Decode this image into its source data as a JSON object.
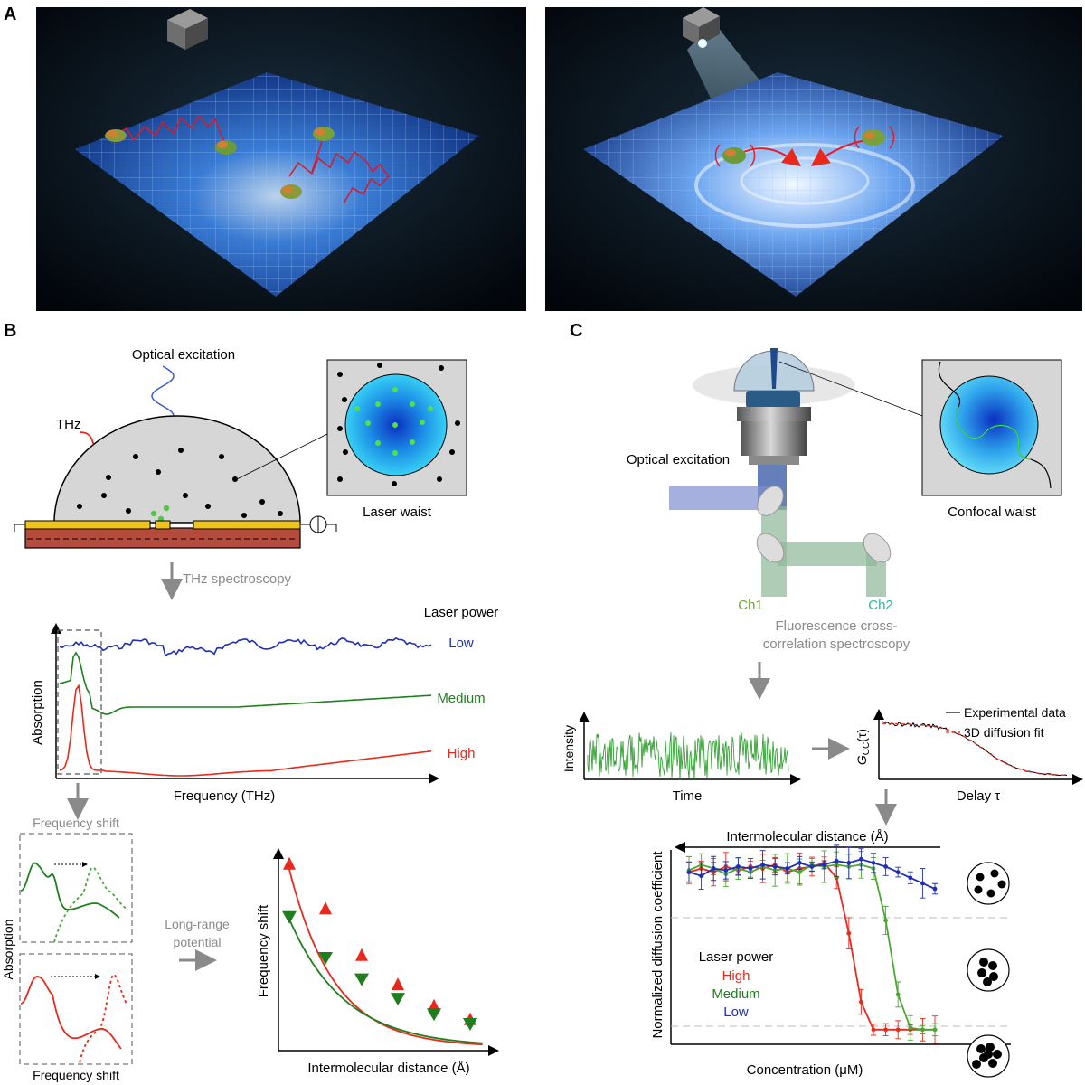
{
  "panels": {
    "a": "A",
    "b": "B",
    "c": "C"
  },
  "panel_b": {
    "optical_excitation": "Optical excitation",
    "thz": "THz",
    "laser_waist": "Laser waist",
    "thz_spectroscopy": "THz spectroscopy",
    "laser_power": "Laser power",
    "absorption": "Absorption",
    "frequency_thz": "Frequency (THz)",
    "low": "Low",
    "medium": "Medium",
    "high": "High",
    "frequency_shift_top": "Frequency shift",
    "frequency_shift_bottom": "Frequency shift",
    "absorption_small": "Absorption",
    "long_range_1": "Long-range",
    "long_range_2": "potential",
    "freq_shift_axis": "Frequency shift",
    "intermol_axis": "Intermolecular distance (Å)"
  },
  "panel_c": {
    "optical_excitation": "Optical excitation",
    "confocal_waist": "Confocal waist",
    "ch1": "Ch1",
    "ch2": "Ch2",
    "fccs_1": "Fluorescence cross-",
    "fccs_2": "correlation spectroscopy",
    "intensity": "Intensity",
    "time": "Time",
    "gcc_main": "G",
    "gcc_sub": "CC",
    "gcc_tail": "(τ)",
    "delay": "Delay τ",
    "legend_exp": "Experimental data",
    "legend_fit": "3D diffusion fit",
    "intermol_axis": "Intermolecular distance (Å)",
    "norm_diff": "Normalized diffusion coefficient",
    "concentration": "Concentration (μM)",
    "laser_power": "Laser power",
    "high": "High",
    "medium": "Medium",
    "low": "Low"
  },
  "colors": {
    "low": "#1f2fb8",
    "medium": "#1f7f1f",
    "high": "#e8291c",
    "medium_light": "#4aa832",
    "gray_text": "#8a8a8a",
    "ch2": "#2bb89a"
  },
  "chart_data": [
    {
      "type": "line",
      "panel": "B spectra",
      "xlabel": "Frequency (THz)",
      "ylabel": "Absorption",
      "series": [
        {
          "name": "Low",
          "shape": "flat noisy line, top"
        },
        {
          "name": "Medium",
          "shape": "peak near left edge, then flat"
        },
        {
          "name": "High",
          "shape": "sharp peak near left edge, then flat"
        }
      ]
    },
    {
      "type": "scatter",
      "panel": "B frequency shift vs distance",
      "xlabel": "Intermolecular distance (Å)",
      "ylabel": "Frequency shift",
      "series": [
        {
          "name": "High",
          "x": [
            1,
            2,
            3,
            4,
            5,
            6
          ],
          "y": [
            0.95,
            0.72,
            0.48,
            0.33,
            0.22,
            0.15
          ]
        },
        {
          "name": "Medium",
          "x": [
            1,
            2,
            3,
            4,
            5,
            6
          ],
          "y": [
            0.68,
            0.47,
            0.36,
            0.26,
            0.18,
            0.13
          ]
        }
      ]
    },
    {
      "type": "line",
      "panel": "C diffusion vs concentration",
      "xlabel": "Concentration (μM)",
      "ylabel": "Normalized diffusion coefficient",
      "series": [
        {
          "name": "High",
          "y": [
            0.88,
            0.9,
            0.88,
            0.91,
            0.89,
            0.91,
            0.9,
            0.92,
            0.88,
            0.9,
            0.91,
            0.93,
            0.85,
            0.55,
            0.18,
            0.03,
            0.03,
            0.03,
            0.03,
            0.03,
            0.03
          ]
        },
        {
          "name": "Medium",
          "y": [
            0.89,
            0.92,
            0.9,
            0.87,
            0.9,
            0.88,
            0.91,
            0.89,
            0.9,
            0.88,
            0.92,
            0.91,
            0.92,
            0.91,
            0.92,
            0.9,
            0.62,
            0.22,
            0.04,
            0.03,
            0.03
          ]
        },
        {
          "name": "Low",
          "y": [
            0.88,
            0.86,
            0.9,
            0.89,
            0.91,
            0.9,
            0.92,
            0.91,
            0.9,
            0.93,
            0.91,
            0.92,
            0.94,
            0.93,
            0.95,
            0.93,
            0.91,
            0.88,
            0.85,
            0.82,
            0.79
          ]
        }
      ]
    }
  ]
}
